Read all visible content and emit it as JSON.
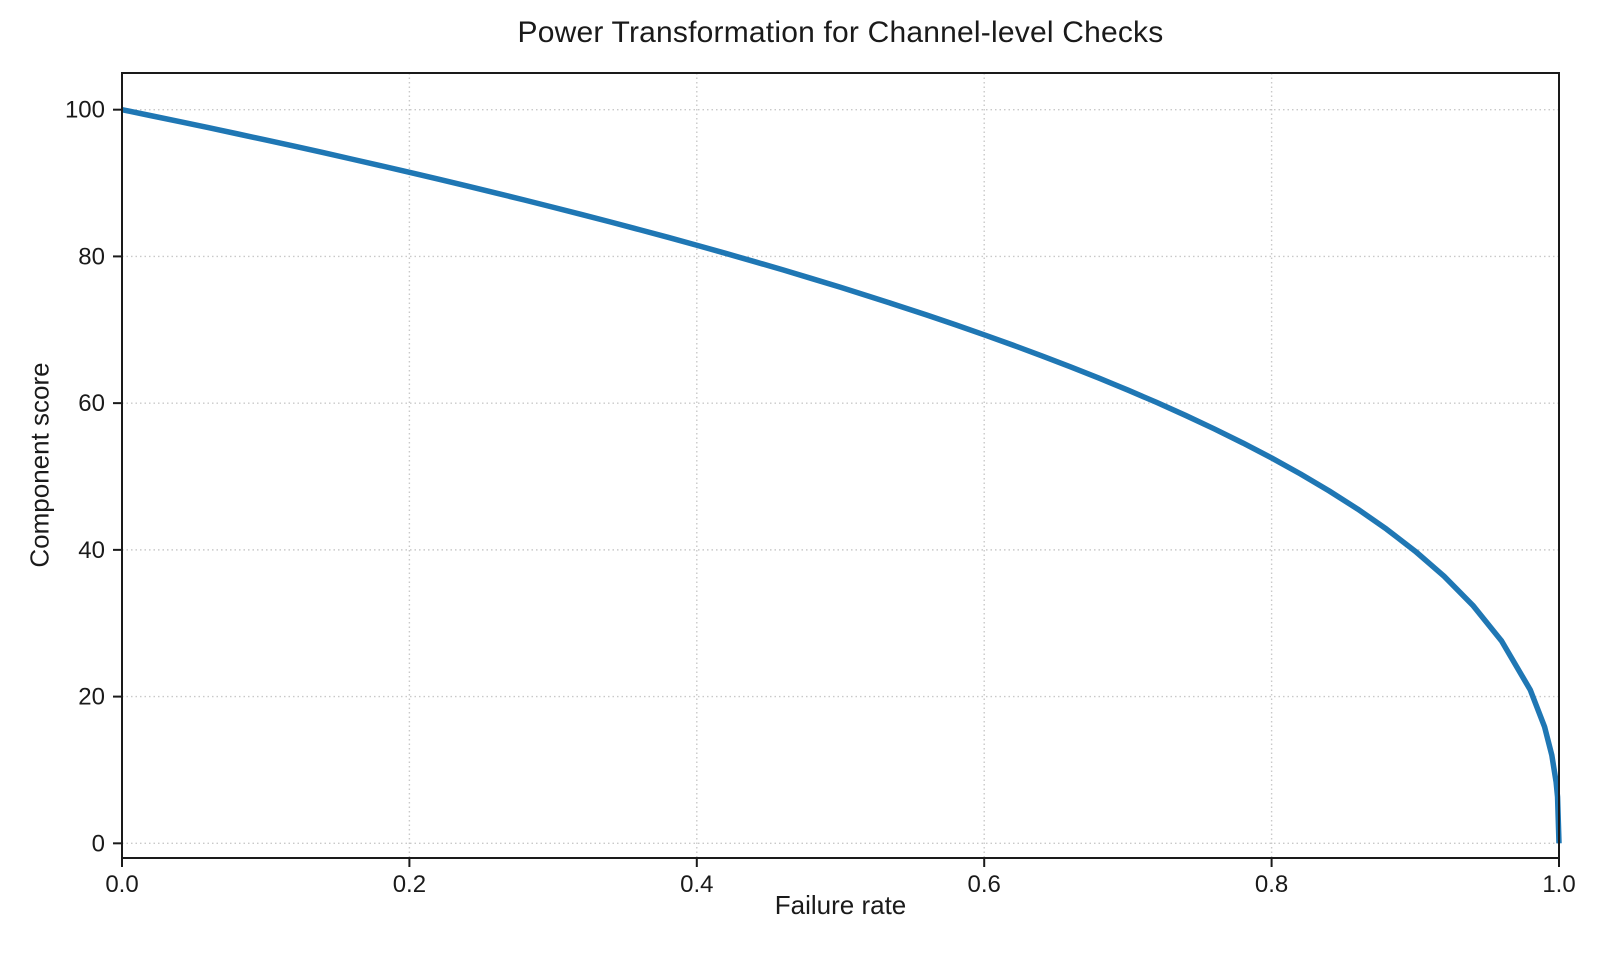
{
  "figure": {
    "background": "#ffffff"
  },
  "chart_data": {
    "type": "line",
    "title": "Power Transformation for Channel-level Checks",
    "xlabel": "Failure rate",
    "ylabel": "Component score",
    "xlim": [
      0.0,
      1.0
    ],
    "ylim": [
      0,
      100
    ],
    "grid": true,
    "grid_style": "dotted",
    "legend_position": "none",
    "line_color": "#1f77b4",
    "grid_color": "#c9c9c9",
    "spine_color": "#1a1a1a",
    "text_color": "#1a1a1a",
    "xticks": {
      "values": [
        0.0,
        0.2,
        0.4,
        0.6,
        0.8,
        1.0
      ],
      "labels": [
        "0.0",
        "0.2",
        "0.4",
        "0.6",
        "0.8",
        "1.0"
      ]
    },
    "yticks": {
      "values": [
        0,
        20,
        40,
        60,
        80,
        100
      ],
      "labels": [
        "0",
        "20",
        "40",
        "60",
        "80",
        "100"
      ]
    },
    "series": [
      {
        "x": [
          0,
          0.02,
          0.04,
          0.06,
          0.08,
          0.1,
          0.12,
          0.14,
          0.16,
          0.18,
          0.2,
          0.22,
          0.24,
          0.26,
          0.28,
          0.3,
          0.32,
          0.34,
          0.36,
          0.38,
          0.4,
          0.42,
          0.44,
          0.46,
          0.48,
          0.5,
          0.52,
          0.54,
          0.56,
          0.58,
          0.6,
          0.62,
          0.64,
          0.66,
          0.68,
          0.7,
          0.72,
          0.74,
          0.76,
          0.78,
          0.8,
          0.82,
          0.84,
          0.86,
          0.88,
          0.9,
          0.92,
          0.94,
          0.96,
          0.98,
          0.99,
          0.995,
          0.998,
          0.999,
          1.0
        ],
        "y": [
          100,
          99.19,
          98.38,
          97.56,
          96.72,
          95.87,
          95.02,
          94.15,
          93.26,
          92.37,
          91.46,
          90.54,
          89.6,
          88.65,
          87.69,
          86.7,
          85.7,
          84.69,
          83.65,
          82.6,
          81.52,
          80.42,
          79.3,
          78.16,
          76.98,
          75.79,
          74.56,
          73.3,
          72.01,
          70.68,
          69.31,
          67.91,
          66.45,
          64.95,
          63.4,
          61.78,
          60.1,
          58.34,
          56.5,
          54.57,
          52.53,
          50.36,
          48.04,
          45.55,
          42.82,
          39.81,
          36.41,
          32.45,
          27.59,
          20.91,
          15.85,
          12.01,
          8.33,
          6.31,
          0
        ]
      }
    ]
  }
}
